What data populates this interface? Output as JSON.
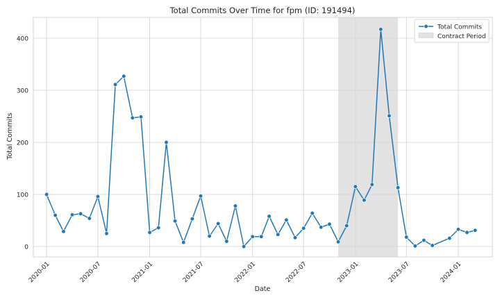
{
  "chart_data": {
    "type": "line",
    "title": "Total Commits Over Time for fpm (ID: 191494)",
    "xlabel": "Date",
    "ylabel": "Total Commits",
    "grid": true,
    "legend_position": "top-right",
    "xlim": [
      "2019-11-15",
      "2024-05-01"
    ],
    "ylim": [
      -20,
      440
    ],
    "x_ticks": [
      "2020-01",
      "2020-07",
      "2021-01",
      "2021-07",
      "2022-01",
      "2022-07",
      "2023-01",
      "2023-07",
      "2024-01"
    ],
    "y_ticks": [
      0,
      100,
      200,
      300,
      400
    ],
    "shaded_region": {
      "name": "Contract Period",
      "start": "2022-11-01",
      "end": "2023-06-01",
      "color": "#e2e2e2"
    },
    "series": [
      {
        "name": "Total Commits",
        "color": "#1f77b4",
        "points": [
          [
            "2020-01-01",
            100
          ],
          [
            "2020-02-01",
            60
          ],
          [
            "2020-03-01",
            29
          ],
          [
            "2020-04-01",
            61
          ],
          [
            "2020-05-01",
            63
          ],
          [
            "2020-06-01",
            54
          ],
          [
            "2020-07-01",
            96
          ],
          [
            "2020-08-01",
            25
          ],
          [
            "2020-09-01",
            311
          ],
          [
            "2020-10-01",
            327
          ],
          [
            "2020-11-01",
            247
          ],
          [
            "2020-12-01",
            249
          ],
          [
            "2021-01-01",
            27
          ],
          [
            "2021-02-01",
            36
          ],
          [
            "2021-03-01",
            200
          ],
          [
            "2021-04-01",
            49
          ],
          [
            "2021-05-01",
            8
          ],
          [
            "2021-06-01",
            53
          ],
          [
            "2021-07-01",
            97
          ],
          [
            "2021-08-01",
            20
          ],
          [
            "2021-09-01",
            44
          ],
          [
            "2021-10-01",
            10
          ],
          [
            "2021-11-01",
            78
          ],
          [
            "2021-12-01",
            0
          ],
          [
            "2022-01-01",
            19
          ],
          [
            "2022-02-01",
            19
          ],
          [
            "2022-03-01",
            58
          ],
          [
            "2022-04-01",
            23
          ],
          [
            "2022-05-01",
            51
          ],
          [
            "2022-06-01",
            17
          ],
          [
            "2022-07-01",
            35
          ],
          [
            "2022-08-01",
            64
          ],
          [
            "2022-09-01",
            37
          ],
          [
            "2022-10-01",
            43
          ],
          [
            "2022-11-01",
            9
          ],
          [
            "2022-12-01",
            40
          ],
          [
            "2023-01-01",
            115
          ],
          [
            "2023-02-01",
            89
          ],
          [
            "2023-03-01",
            119
          ],
          [
            "2023-04-01",
            417
          ],
          [
            "2023-05-01",
            251
          ],
          [
            "2023-06-01",
            113
          ],
          [
            "2023-07-01",
            18
          ],
          [
            "2023-08-01",
            1
          ],
          [
            "2023-09-01",
            12
          ],
          [
            "2023-10-01",
            2
          ],
          [
            "2023-12-01",
            16
          ],
          [
            "2024-01-01",
            33
          ],
          [
            "2024-02-01",
            27
          ],
          [
            "2024-03-01",
            31
          ]
        ]
      }
    ]
  }
}
